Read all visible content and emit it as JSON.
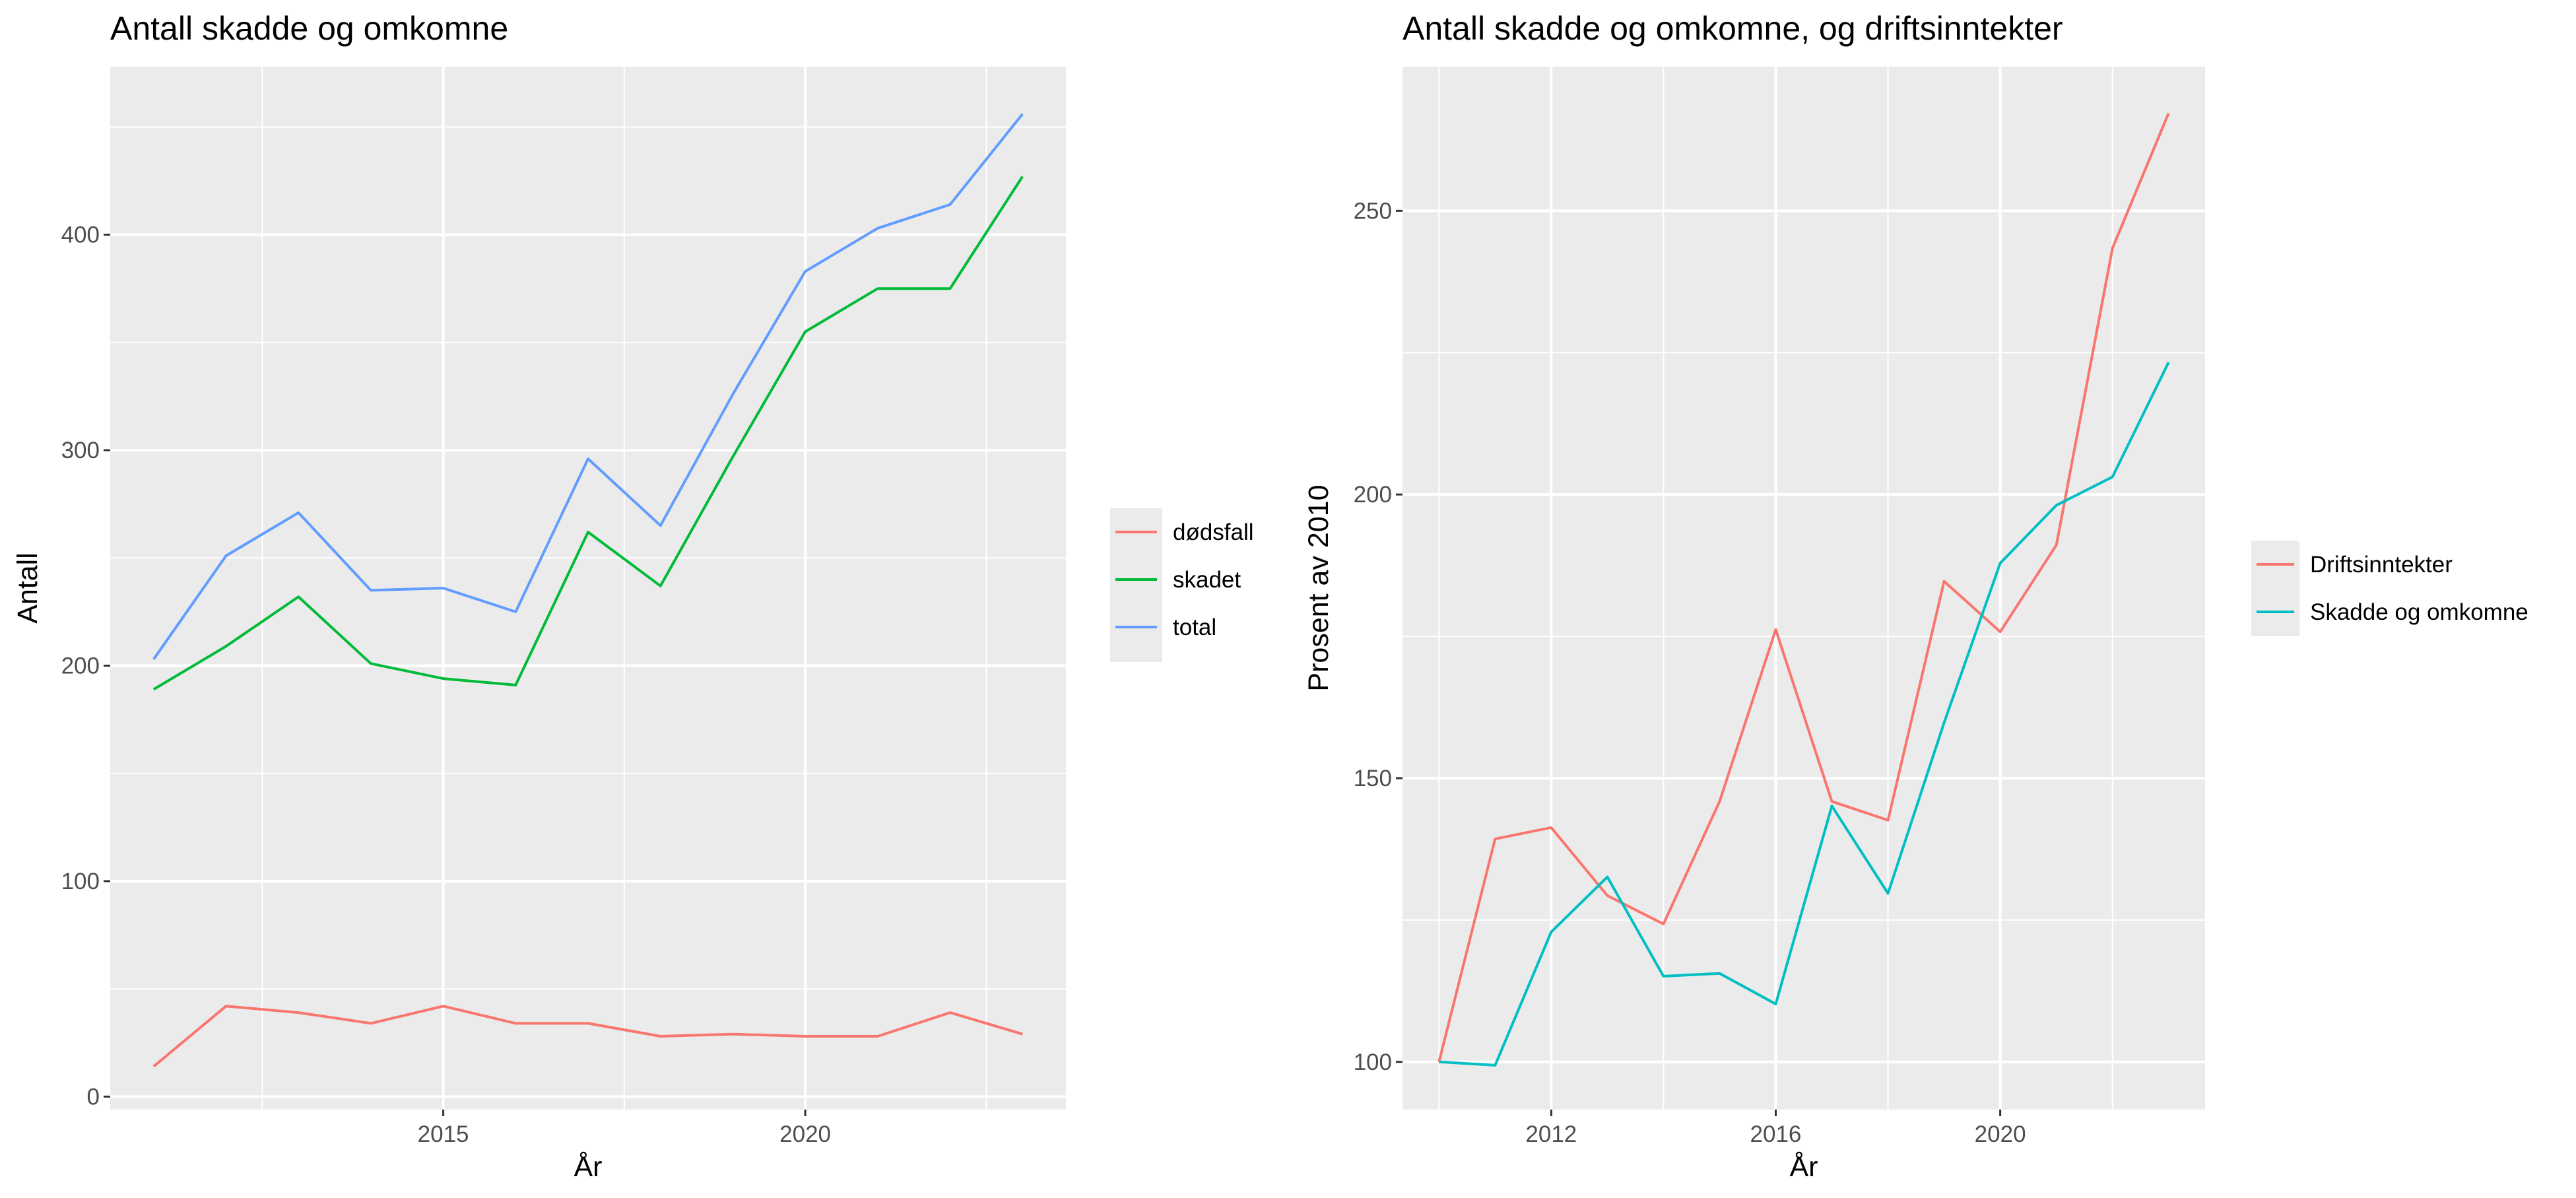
{
  "chart_data": [
    {
      "type": "line",
      "title": "Antall skadde og omkomne",
      "xlabel": "År",
      "ylabel": "Antall",
      "xlim": [
        2010.4,
        2023.6
      ],
      "ylim": [
        -6,
        478
      ],
      "x_breaks": [
        2015,
        2020
      ],
      "x_minor_breaks": [
        2012.5,
        2017.5,
        2022.5
      ],
      "y_breaks": [
        0,
        100,
        200,
        300,
        400
      ],
      "y_minor_breaks": [
        50,
        150,
        250,
        350,
        450
      ],
      "grid": true,
      "legend_position": "right",
      "x": [
        2011,
        2012,
        2013,
        2014,
        2015,
        2016,
        2017,
        2018,
        2019,
        2020,
        2021,
        2022,
        2023
      ],
      "series": [
        {
          "name": "dødsfall",
          "color": "#F8766D",
          "values": [
            14,
            42,
            39,
            34,
            42,
            34,
            34,
            28,
            29,
            28,
            28,
            39,
            29
          ]
        },
        {
          "name": "skadet",
          "color": "#00BA38",
          "values": [
            189,
            209,
            232,
            201,
            194,
            191,
            262,
            237,
            297,
            355,
            375,
            375,
            427
          ]
        },
        {
          "name": "total",
          "color": "#619CFF",
          "values": [
            203,
            251,
            271,
            235,
            236,
            225,
            296,
            265,
            326,
            383,
            403,
            414,
            456
          ]
        }
      ]
    },
    {
      "type": "line",
      "title": "Antall skadde og omkomne, og driftsinntekter",
      "xlabel": "År",
      "ylabel": "Prosent av 2010",
      "xlim": [
        2009.35,
        2023.65
      ],
      "ylim": [
        91.6,
        275.4
      ],
      "x_breaks": [
        2012,
        2016,
        2020
      ],
      "x_minor_breaks": [
        2010,
        2014,
        2018,
        2022
      ],
      "y_breaks": [
        100,
        150,
        200,
        250
      ],
      "y_minor_breaks": [
        125,
        175,
        225
      ],
      "grid": true,
      "legend_position": "right",
      "x": [
        2010,
        2011,
        2012,
        2013,
        2014,
        2015,
        2016,
        2017,
        2018,
        2019,
        2020,
        2021,
        2022,
        2023
      ],
      "series": [
        {
          "name": "Driftsinntekter",
          "color": "#F8766D",
          "values": [
            100,
            139.3,
            141.3,
            129.3,
            124.3,
            145.9,
            176.2,
            145.9,
            142.6,
            184.7,
            175.8,
            191.1,
            243.4,
            267.2
          ]
        },
        {
          "name": "Skadde og omkomne",
          "color": "#00BFC4",
          "values": [
            100,
            99.4,
            122.9,
            132.6,
            115.1,
            115.6,
            110.2,
            145.1,
            129.7,
            159.8,
            187.9,
            198.1,
            203.1,
            223.3
          ]
        }
      ]
    }
  ]
}
